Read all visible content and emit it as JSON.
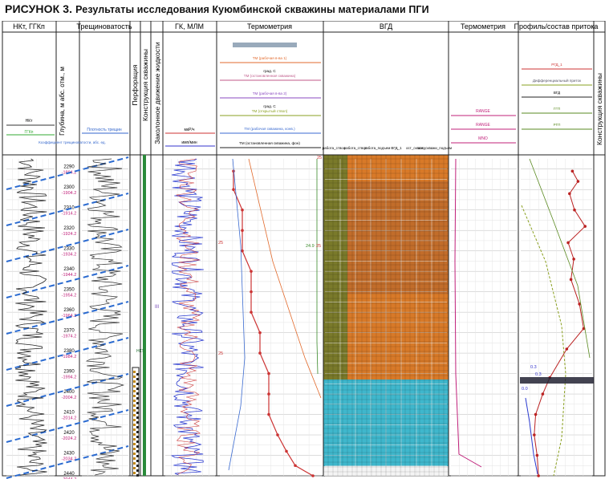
{
  "figure": {
    "label": "РИСУНОК 3.",
    "caption": "Результаты исследования Куюмбинской скважины материалами ПГИ"
  },
  "tracks": [
    {
      "id": "nkt",
      "title": "НКт, ГГКп"
    },
    {
      "id": "depth",
      "title": "Глубина, м абс. отм., м"
    },
    {
      "id": "frac",
      "title": "Трещиноватость"
    },
    {
      "id": "perf",
      "title": "Перфорация"
    },
    {
      "id": "constr",
      "title": "Конструкция скважины"
    },
    {
      "id": "fluid",
      "title": "Заколонное движение жидкости"
    },
    {
      "id": "gk",
      "title": "ГК, МЛМ"
    },
    {
      "id": "thermo",
      "title": "Термометрия"
    },
    {
      "id": "vgd",
      "title": "ВГД"
    },
    {
      "id": "thermo2",
      "title": "Термометрия"
    },
    {
      "id": "profile",
      "title": "Профиль/состав притока"
    },
    {
      "id": "constr2",
      "title": "Конструкция скважины"
    }
  ],
  "header_small": {
    "nkt": [
      "НКт",
      "ГГКп"
    ],
    "frac": "Плотность трещин",
    "frac_sub": "Коэффициент трещиноватости, абс. ед.",
    "gk_units": [
      "мкР/ч",
      "имп/мин"
    ],
    "thermo": [
      "ТМ (рабочая в-ва 1)",
      "ТМ (остановленная скважина)",
      "ТМ (рабочая в-ва 2)",
      "ТМ (открытый ствол)",
      "ТМ (рабочая скважина, конв.)",
      "ТМ (остановленная скважина, фон)"
    ],
    "thermo_unit": "град. С",
    "vgd": [
      "работа_ствол",
      "работа_ствол",
      "работа_подъем",
      "ВГД_1",
      "ост_скважи",
      "ост_скважи_подъем"
    ],
    "thermo2": [
      "RANGE",
      "RANGE",
      "MNO"
    ],
    "profile": [
      "РГД_1",
      "Дифференциальный приток",
      "ВГД",
      "ГГП",
      "РГП"
    ]
  },
  "depths": [
    {
      "depth": "2290",
      "abs": "-1894.2"
    },
    {
      "depth": "2300",
      "abs": "-1904.2"
    },
    {
      "depth": "2310",
      "abs": "-1914.2"
    },
    {
      "depth": "2320",
      "abs": "-1924.2"
    },
    {
      "depth": "2330",
      "abs": "-1934.2"
    },
    {
      "depth": "2340",
      "abs": "-1944.2"
    },
    {
      "depth": "2350",
      "abs": "-1954.2"
    },
    {
      "depth": "2360",
      "abs": "-1964.2"
    },
    {
      "depth": "2370",
      "abs": "-1974.2"
    },
    {
      "depth": "2380",
      "abs": "-1984.2"
    },
    {
      "depth": "2390",
      "abs": "-1994.2"
    },
    {
      "depth": "2400",
      "abs": "-2004.2"
    },
    {
      "depth": "2410",
      "abs": "-2014.2"
    },
    {
      "depth": "2420",
      "abs": "-2024.2"
    },
    {
      "depth": "2430",
      "abs": "-2034.2"
    },
    {
      "depth": "2440",
      "abs": "-2044.2"
    }
  ],
  "markers": {
    "nkt_marker": "НКТ",
    "roman": "III",
    "thermo_values": [
      "25",
      "25",
      "24.9",
      "25",
      "25"
    ],
    "profile_values": [
      "0.3",
      "0.3",
      "0.0"
    ]
  },
  "chart_data": {
    "type": "line",
    "title": "",
    "xlabel": "",
    "ylabel": "",
    "ylim": [
      2440,
      2285
    ],
    "series": [
      {
        "track": "thermo",
        "x": [
          24.96,
          24.96,
          24.97,
          24.97,
          24.97,
          24.98,
          24.98,
          24.98,
          24.99,
          24.99,
          25.0,
          25.0,
          25.0,
          25.01,
          25.02,
          25.03,
          25.05
        ],
        "y": [
          2291,
          2300,
          2310,
          2320,
          2330,
          2340,
          2350,
          2360,
          2370,
          2380,
          2390,
          2400,
          2410,
          2420,
          2428,
          2435,
          2440
        ]
      },
      {
        "track": "profile",
        "x": [
          72,
          80,
          68,
          75,
          90,
          66,
          74,
          70,
          82,
          88,
          64,
          40,
          30,
          20,
          18,
          22,
          24
        ],
        "y": [
          2291,
          2296,
          2302,
          2310,
          2318,
          2326,
          2334,
          2344,
          2356,
          2368,
          2378,
          2392,
          2400,
          2410,
          2420,
          2430,
          2440
        ]
      }
    ]
  }
}
